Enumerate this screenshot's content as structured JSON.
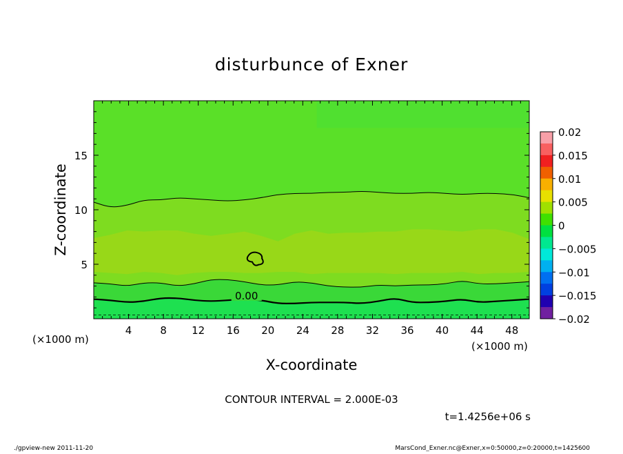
{
  "chart_data": {
    "type": "contour",
    "title": "disturbunce of Exner",
    "xlabel": "X-coordinate",
    "ylabel": "Z-coordinate",
    "x_unit": "(×1000 m)",
    "y_unit": "(×1000 m)",
    "xlim": [
      0,
      50
    ],
    "ylim": [
      0,
      20
    ],
    "x_ticks": [
      "4",
      "8",
      "12",
      "16",
      "20",
      "24",
      "28",
      "32",
      "36",
      "40",
      "44",
      "48"
    ],
    "y_ticks": [
      "5",
      "10",
      "15"
    ],
    "contour_label": "0.00",
    "contour_interval_text": "CONTOUR INTERVAL = 2.000E-03",
    "time_text": "t=1.4256e+06 s",
    "colorbar": {
      "ticks": [
        "0.02",
        "0.015",
        "0.01",
        "0.005",
        "0",
        "−0.005",
        "−0.01",
        "−0.015",
        "−0.02"
      ],
      "levels": [
        {
          "range": [
            0.0175,
            0.02
          ],
          "color": "#f8a0a8"
        },
        {
          "range": [
            0.015,
            0.0175
          ],
          "color": "#f86060"
        },
        {
          "range": [
            0.0125,
            0.015
          ],
          "color": "#f02020"
        },
        {
          "range": [
            0.01,
            0.0125
          ],
          "color": "#f06000"
        },
        {
          "range": [
            0.0075,
            0.01
          ],
          "color": "#f8b000"
        },
        {
          "range": [
            0.005,
            0.0075
          ],
          "color": "#e8e000"
        },
        {
          "range": [
            0.0025,
            0.005
          ],
          "color": "#a0e000"
        },
        {
          "range": [
            0,
            0.0025
          ],
          "color": "#40e000"
        },
        {
          "range": [
            -0.0025,
            0
          ],
          "color": "#00e040"
        },
        {
          "range": [
            -0.005,
            -0.0025
          ],
          "color": "#00e890"
        },
        {
          "range": [
            -0.0075,
            -0.005
          ],
          "color": "#00e8d8"
        },
        {
          "range": [
            -0.01,
            -0.0075
          ],
          "color": "#00b0f0"
        },
        {
          "range": [
            -0.0125,
            -0.01
          ],
          "color": "#0070f0"
        },
        {
          "range": [
            -0.015,
            -0.0125
          ],
          "color": "#0040e0"
        },
        {
          "range": [
            -0.0175,
            -0.015
          ],
          "color": "#2000b0"
        },
        {
          "range": [
            -0.02,
            -0.0175
          ],
          "color": "#7020a0"
        }
      ]
    },
    "fill_colors": {
      "upper": "#5ae028",
      "middle": "#7edc20",
      "middle_core": "#98d818",
      "lower": "#3ad838",
      "bottom": "#1ee050"
    },
    "contours": {
      "upper_z": [
        10.7,
        10.2,
        10.4,
        10.9,
        10.9,
        11.1,
        11.0,
        10.9,
        10.8,
        10.9,
        11.1,
        11.4,
        11.5,
        11.5,
        11.6,
        11.6,
        11.7,
        11.6,
        11.5,
        11.5,
        11.6,
        11.5,
        11.4,
        11.5,
        11.5,
        11.4,
        11.1
      ],
      "lower_z": [
        3.3,
        3.2,
        3.0,
        3.3,
        3.3,
        3.0,
        3.2,
        3.6,
        3.6,
        3.4,
        3.1,
        3.1,
        3.4,
        3.3,
        3.0,
        2.9,
        2.9,
        3.1,
        3.0,
        3.1,
        3.1,
        3.2,
        3.5,
        3.2,
        3.2,
        3.3,
        3.4
      ],
      "zero_z": [
        1.8,
        1.7,
        1.5,
        1.6,
        1.9,
        1.9,
        1.7,
        1.6,
        1.7,
        1.8,
        1.7,
        1.4,
        1.4,
        1.5,
        1.5,
        1.5,
        1.4,
        1.6,
        1.9,
        1.5,
        1.5,
        1.6,
        1.8,
        1.5,
        1.6,
        1.7,
        1.8
      ],
      "blob_center": [
        18.6,
        5.4
      ]
    }
  },
  "footer": {
    "left": "./gpview-new   2011-11-20",
    "right": "MarsCond_Exner.nc@Exner,x=0:50000,z=0:20000,t=1425600"
  }
}
